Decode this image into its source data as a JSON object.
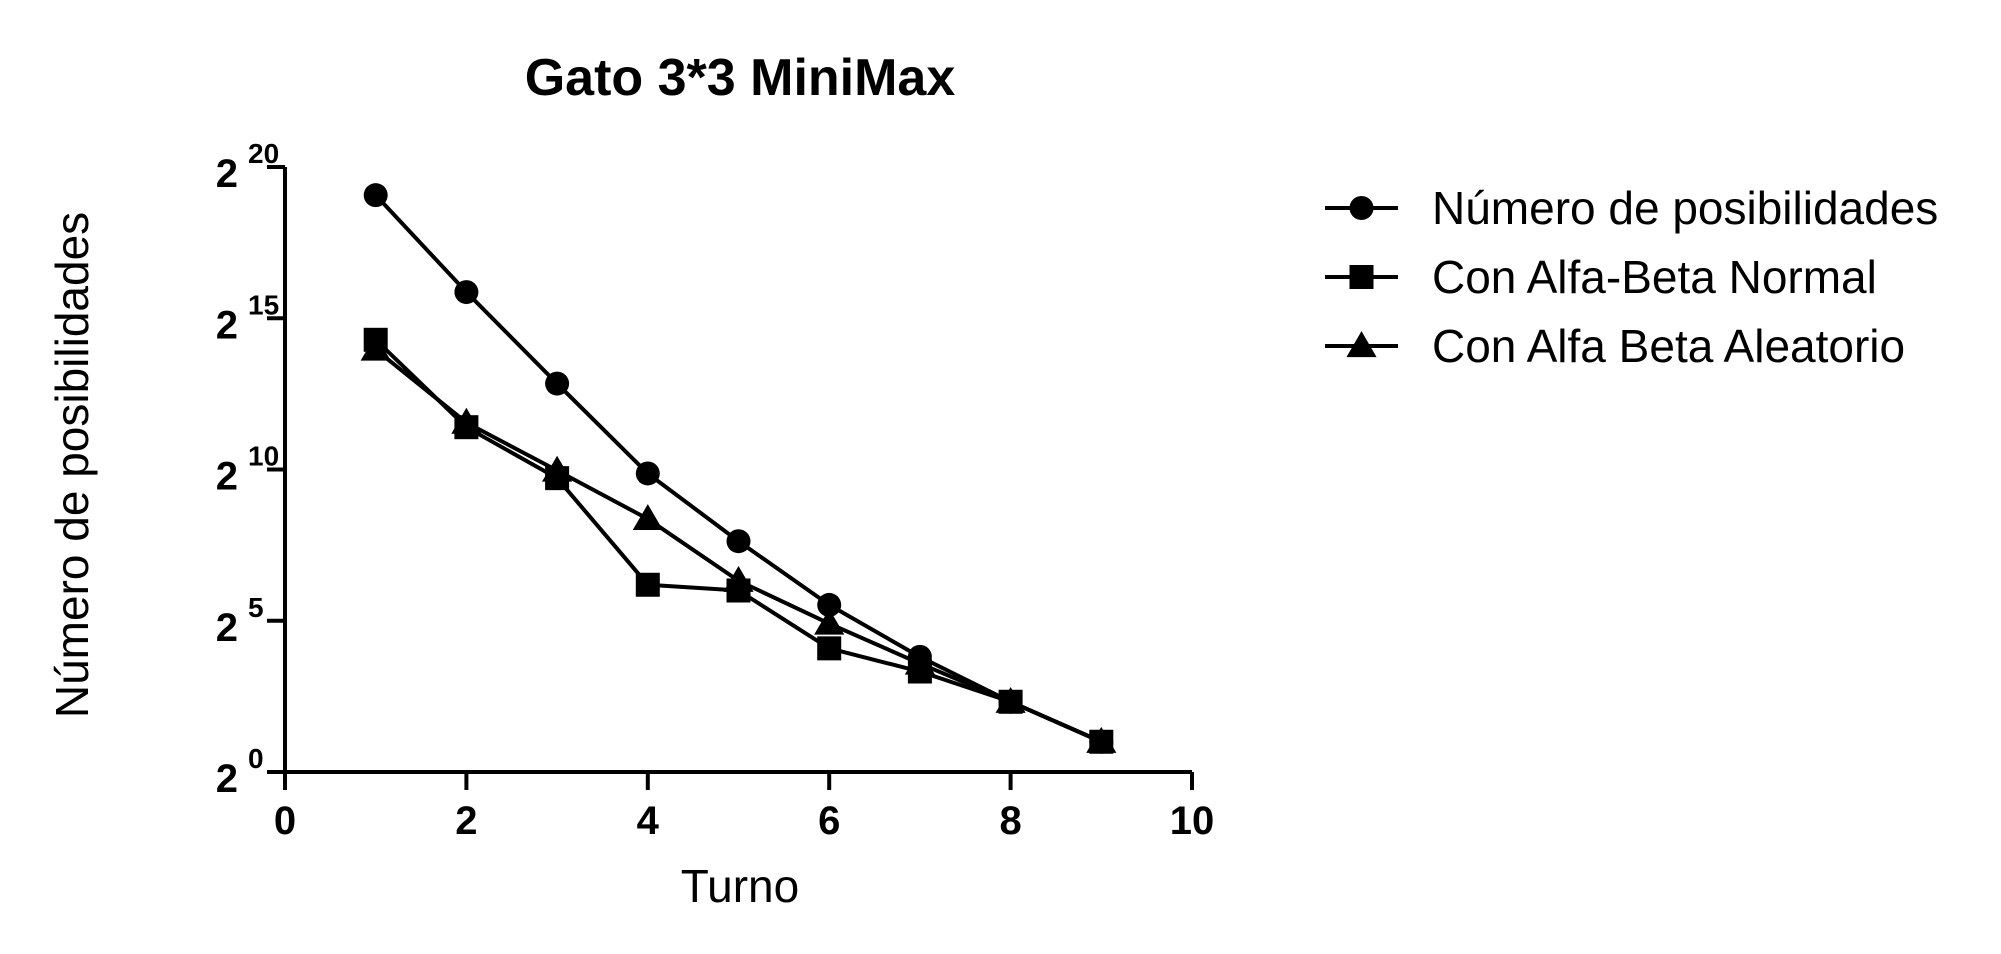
{
  "chart_data": {
    "type": "line",
    "title": "Gato 3*3 MiniMax",
    "xlabel": "Turno",
    "ylabel": "Número de posibilidades",
    "xlim": [
      0,
      10
    ],
    "ylim": [
      1,
      1048576
    ],
    "yscale": "log2",
    "x_ticks": [
      "0",
      "2",
      "4",
      "6",
      "8",
      "10"
    ],
    "y_ticks": [
      {
        "base": "2",
        "exp": "0"
      },
      {
        "base": "2",
        "exp": "5"
      },
      {
        "base": "2",
        "exp": "10"
      },
      {
        "base": "2",
        "exp": "15"
      },
      {
        "base": "2",
        "exp": "20"
      }
    ],
    "y_tick_values": [
      1,
      32,
      1024,
      32768,
      1048576
    ],
    "grid": false,
    "legend_position": "right",
    "series": [
      {
        "name": "Número de posibilidades",
        "marker": "circle",
        "color": "#000000",
        "x": [
          1,
          2,
          3,
          4,
          5,
          6,
          7,
          8,
          9
        ],
        "y": [
          549946,
          59705,
          7332,
          935,
          198,
          46,
          14,
          5,
          2
        ]
      },
      {
        "name": "Con Alfa-Beta Normal",
        "marker": "square",
        "color": "#000000",
        "x": [
          1,
          2,
          3,
          4,
          5,
          6,
          7,
          8,
          9
        ],
        "y": [
          20000,
          2700,
          840,
          73,
          64,
          17,
          10,
          5,
          2
        ]
      },
      {
        "name": "Con Alfa Beta Aleatorio",
        "marker": "triangle",
        "color": "#000000",
        "x": [
          1,
          2,
          3,
          4,
          5,
          6,
          7,
          8,
          9
        ],
        "y": [
          16000,
          3000,
          1000,
          330,
          80,
          30,
          12,
          5,
          2
        ]
      }
    ]
  }
}
